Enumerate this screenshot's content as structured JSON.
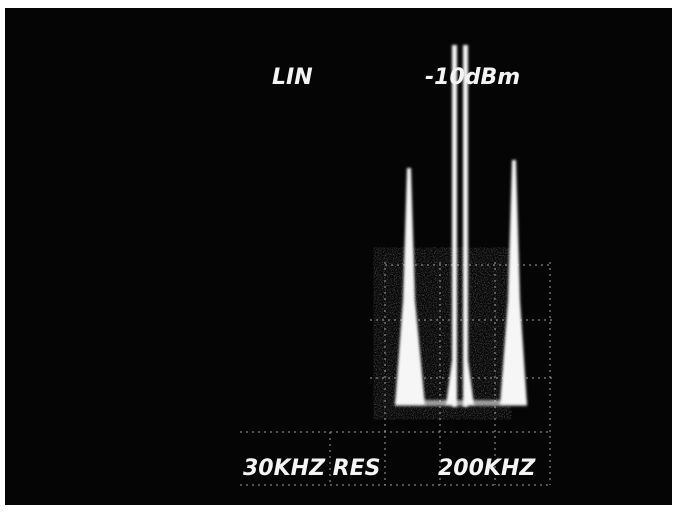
{
  "screen": {
    "mode": "LIN",
    "reference_level": "-10dBm",
    "resolution": "30KHZ RES",
    "span": "200KHZ"
  }
}
